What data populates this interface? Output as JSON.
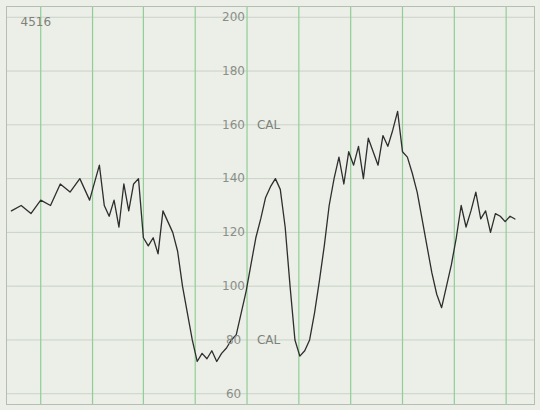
{
  "chart_data": {
    "type": "line",
    "color": "#2e2e2e",
    "grid": true,
    "tick_labels": "y",
    "xlim": [
      0,
      540
    ],
    "xticks": [
      35,
      88,
      140,
      193,
      246,
      299,
      352,
      405,
      458,
      511
    ],
    "ylim": [
      56,
      204
    ],
    "yticks": [
      60,
      80,
      100,
      120,
      140,
      160,
      180,
      200
    ],
    "x": [
      5,
      15,
      25,
      35,
      45,
      55,
      65,
      75,
      85,
      95,
      100,
      105,
      110,
      115,
      120,
      125,
      130,
      135,
      140,
      145,
      150,
      155,
      160,
      165,
      170,
      175,
      180,
      185,
      190,
      195,
      200,
      205,
      210,
      215,
      220,
      225,
      230,
      235,
      240,
      245,
      250,
      255,
      260,
      265,
      270,
      275,
      280,
      285,
      290,
      295,
      300,
      305,
      310,
      315,
      320,
      325,
      330,
      335,
      340,
      345,
      350,
      355,
      360,
      365,
      370,
      375,
      380,
      385,
      390,
      395,
      400,
      405,
      410,
      415,
      420,
      425,
      430,
      435,
      440,
      445,
      450,
      455,
      460,
      465,
      470,
      475,
      480,
      485,
      490,
      495,
      500,
      505,
      510,
      515,
      520
    ],
    "values": [
      128,
      130,
      127,
      132,
      130,
      138,
      135,
      140,
      132,
      145,
      130,
      126,
      132,
      122,
      138,
      128,
      138,
      140,
      118,
      115,
      118,
      112,
      128,
      124,
      120,
      113,
      100,
      90,
      80,
      72,
      75,
      73,
      76,
      72,
      75,
      77,
      80,
      82,
      90,
      98,
      108,
      118,
      125,
      133,
      137,
      140,
      136,
      122,
      100,
      80,
      74,
      76,
      80,
      90,
      102,
      115,
      130,
      140,
      148,
      138,
      150,
      145,
      152,
      140,
      155,
      150,
      145,
      156,
      152,
      158,
      165,
      150,
      148,
      142,
      135,
      125,
      115,
      105,
      97,
      92,
      100,
      108,
      118,
      130,
      122,
      128,
      135,
      125,
      128,
      120,
      127,
      126,
      124,
      126,
      125
    ],
    "annotations": [
      {
        "x": 30,
        "y": 198,
        "text": "4516"
      },
      {
        "x": 268,
        "y": 160,
        "text": "CAL"
      },
      {
        "x": 268,
        "y": 80,
        "text": "CAL"
      }
    ]
  }
}
